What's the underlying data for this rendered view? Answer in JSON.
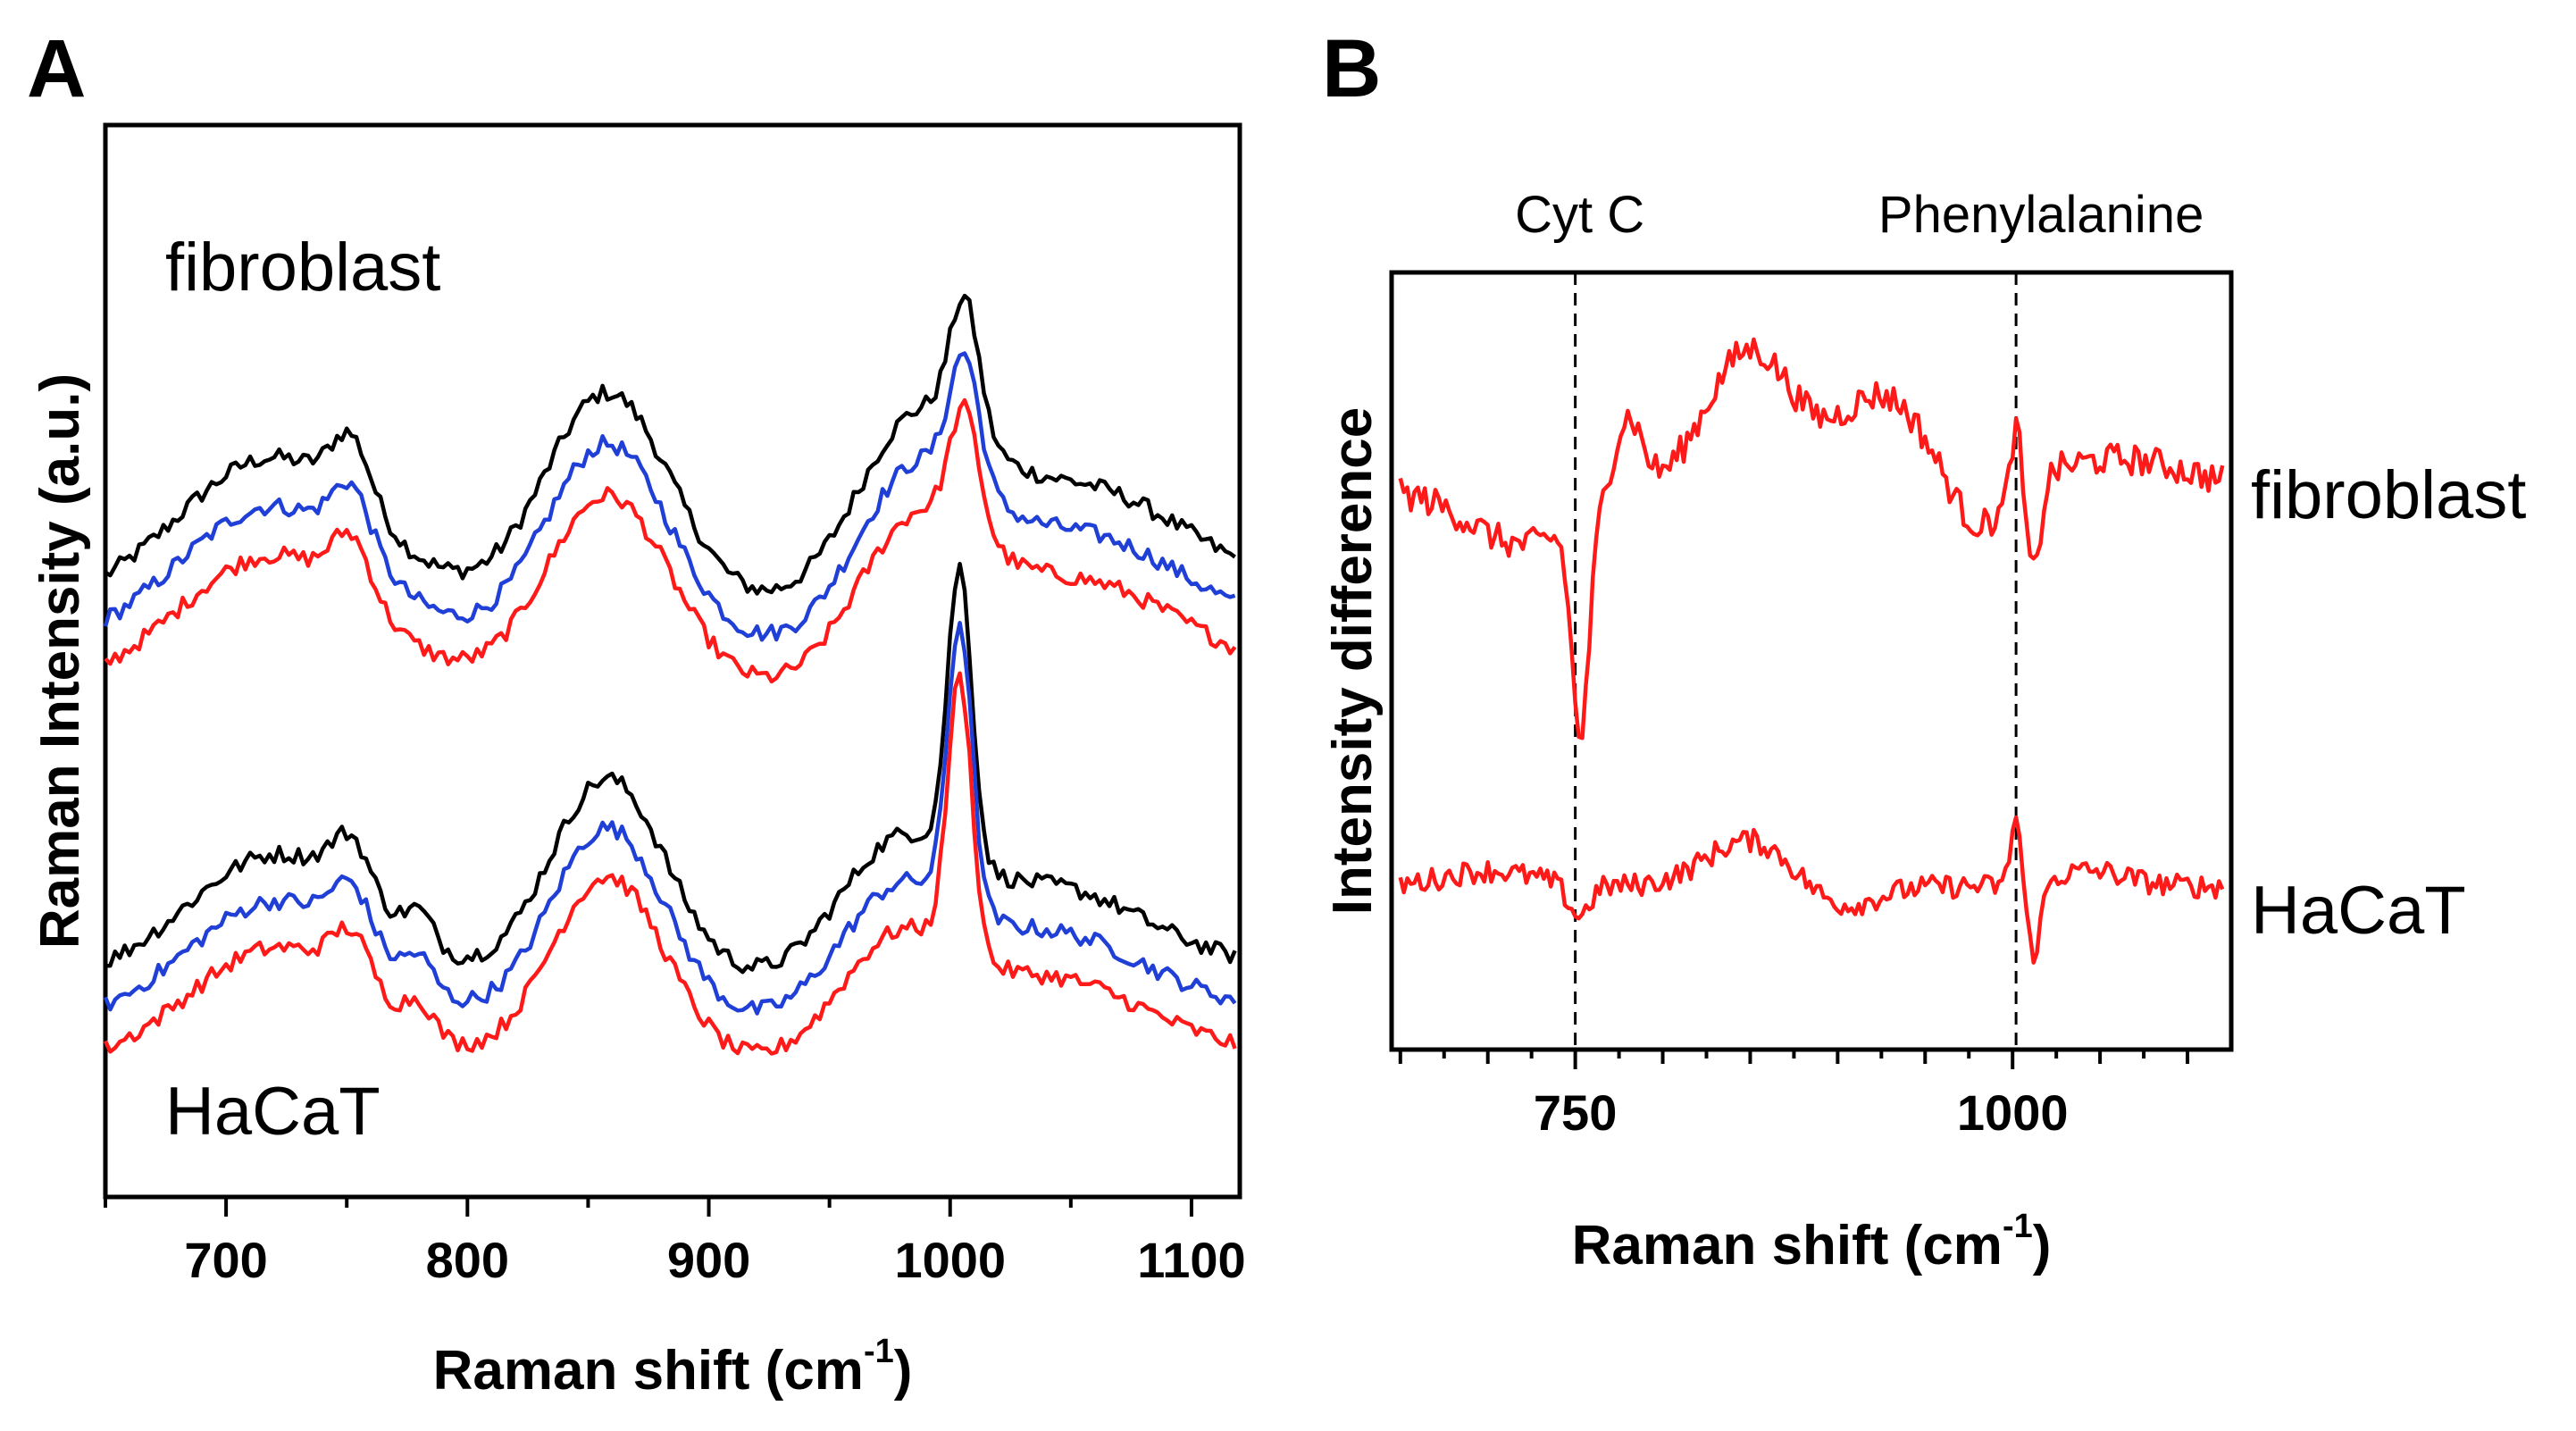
{
  "chart_data": [
    {
      "panel": "A",
      "type": "line",
      "xlabel": "Raman shift (cm",
      "xlabel_sup": "-1",
      "xlabel_close": ")",
      "ylabel": "Raman Intensity (a.u.)",
      "xlim": [
        650,
        1120
      ],
      "ylim": [
        0,
        100
      ],
      "xticks": [
        700,
        800,
        900,
        1000,
        1100
      ],
      "yticks": [],
      "grid": false,
      "groups": [
        {
          "name": "fibroblast",
          "series_colors": [
            "#000000",
            "#1f3fd6",
            "#ff1a1a"
          ],
          "offsets": [
            67,
            63,
            59
          ]
        },
        {
          "name": "HaCaT",
          "series_colors": [
            "#000000",
            "#1f3fd6",
            "#ff1a1a"
          ],
          "offsets": [
            32,
            28,
            24
          ]
        }
      ]
    },
    {
      "panel": "B",
      "type": "line",
      "xlabel": "Raman shift (cm",
      "xlabel_sup": "-1",
      "xlabel_close": ")",
      "ylabel": "Intensity difference",
      "xlim": [
        645,
        1125
      ],
      "ylim": [
        0,
        100
      ],
      "xticks": [
        750,
        1000
      ],
      "yticks": [],
      "grid": false,
      "reference_lines": [
        {
          "x": 750,
          "label": "Cyt C"
        },
        {
          "x": 1002,
          "label": "Phenylalanine"
        }
      ],
      "series": [
        {
          "name": "fibroblast",
          "color": "#ff1a1a",
          "offset": 72
        },
        {
          "name": "HaCaT",
          "color": "#ff1a1a",
          "offset": 21
        }
      ]
    }
  ]
}
